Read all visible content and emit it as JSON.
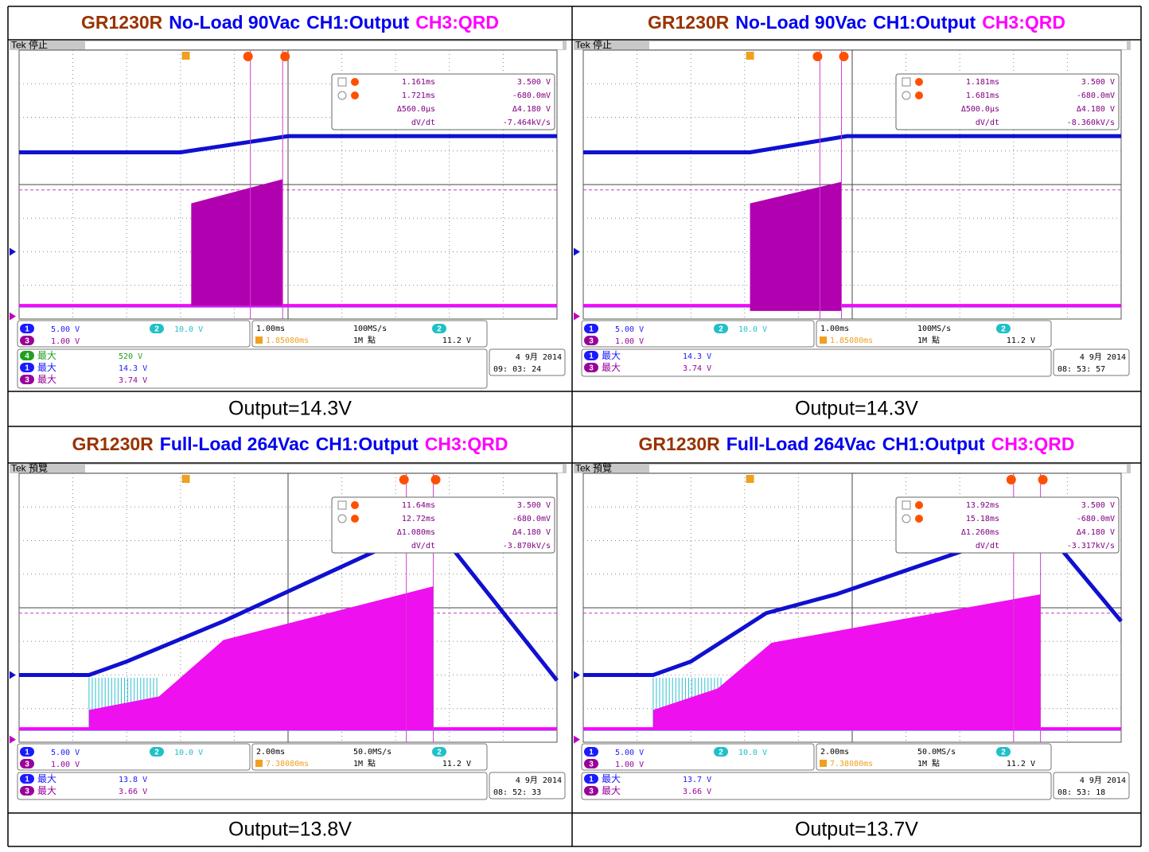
{
  "cells": [
    {
      "title": [
        "GR1230R",
        "No-Load 90Vac",
        "CH1:Output",
        "CH3:QRD"
      ],
      "scope": {
        "status": "Tek 停止",
        "cursors": {
          "a_time": "1.161ms",
          "a_volt": "3.500 V",
          "b_time": "1.721ms",
          "b_volt": "-680.0mV",
          "dt": "Δ560.0µs",
          "dv": "Δ4.180 V",
          "rate_label": "dV/dt",
          "rate": "-7.464kV/s"
        },
        "channels": [
          {
            "id": "1",
            "scale": "5.00 V"
          },
          {
            "id": "2",
            "scale": "10.0 V"
          },
          {
            "id": "3",
            "scale": "1.00 V"
          }
        ],
        "timebase": {
          "scale": "1.00ms",
          "rate": "100MS/s",
          "trigger_pos": "1.85080ms",
          "length": "1M 點",
          "trigger_channel": "2",
          "trigger_level": "11.2 V"
        },
        "measurements": [
          {
            "channel": "4",
            "label": "最大",
            "value": "520 V"
          },
          {
            "channel": "1",
            "label": "最大",
            "value": "14.3 V"
          },
          {
            "channel": "3",
            "label": "最大",
            "value": "3.74 V"
          }
        ],
        "date": "4 9月  2014",
        "time": "09: 03: 24"
      },
      "caption": "Output=14.3V"
    },
    {
      "title": [
        "GR1230R",
        "No-Load 90Vac",
        "CH1:Output",
        "CH3:QRD"
      ],
      "scope": {
        "status": "Tek 停止",
        "cursors": {
          "a_time": "1.181ms",
          "a_volt": "3.500 V",
          "b_time": "1.681ms",
          "b_volt": "-680.0mV",
          "dt": "Δ500.0µs",
          "dv": "Δ4.180 V",
          "rate_label": "dV/dt",
          "rate": "-8.360kV/s"
        },
        "channels": [
          {
            "id": "1",
            "scale": "5.00 V"
          },
          {
            "id": "2",
            "scale": "10.0 V"
          },
          {
            "id": "3",
            "scale": "1.00 V"
          }
        ],
        "timebase": {
          "scale": "1.00ms",
          "rate": "100MS/s",
          "trigger_pos": "1.85080ms",
          "length": "1M 點",
          "trigger_channel": "2",
          "trigger_level": "11.2 V"
        },
        "measurements": [
          {
            "channel": "1",
            "label": "最大",
            "value": "14.3 V"
          },
          {
            "channel": "3",
            "label": "最大",
            "value": "3.74 V"
          }
        ],
        "date": "4 9月  2014",
        "time": "08: 53: 57"
      },
      "caption": "Output=14.3V"
    },
    {
      "title": [
        "GR1230R",
        "Full-Load 264Vac",
        "CH1:Output",
        "CH3:QRD"
      ],
      "scope": {
        "status": "Tek 預覽",
        "cursors": {
          "a_time": "11.64ms",
          "a_volt": "3.500 V",
          "b_time": "12.72ms",
          "b_volt": "-680.0mV",
          "dt": "Δ1.080ms",
          "dv": "Δ4.180 V",
          "rate_label": "dV/dt",
          "rate": "-3.870kV/s"
        },
        "channels": [
          {
            "id": "1",
            "scale": "5.00 V"
          },
          {
            "id": "2",
            "scale": "10.0 V"
          },
          {
            "id": "3",
            "scale": "1.00 V"
          }
        ],
        "timebase": {
          "scale": "2.00ms",
          "rate": "50.0MS/s",
          "trigger_pos": "7.38080ms",
          "length": "1M 點",
          "trigger_channel": "2",
          "trigger_level": "11.2 V"
        },
        "measurements": [
          {
            "channel": "1",
            "label": "最大",
            "value": "13.8 V"
          },
          {
            "channel": "3",
            "label": "最大",
            "value": "3.66 V"
          }
        ],
        "date": "4 9月  2014",
        "time": "08: 52: 33"
      },
      "caption": "Output=13.8V"
    },
    {
      "title": [
        "GR1230R",
        "Full-Load 264Vac",
        "CH1:Output",
        "CH3:QRD"
      ],
      "scope": {
        "status": "Tek 預覽",
        "cursors": {
          "a_time": "13.92ms",
          "a_volt": "3.500 V",
          "b_time": "15.18ms",
          "b_volt": "-680.0mV",
          "dt": "Δ1.260ms",
          "dv": "Δ4.180 V",
          "rate_label": "dV/dt",
          "rate": "-3.317kV/s"
        },
        "channels": [
          {
            "id": "1",
            "scale": "5.00 V"
          },
          {
            "id": "2",
            "scale": "10.0 V"
          },
          {
            "id": "3",
            "scale": "1.00 V"
          }
        ],
        "timebase": {
          "scale": "2.00ms",
          "rate": "50.0MS/s",
          "trigger_pos": "7.38080ms",
          "length": "1M 點",
          "trigger_channel": "2",
          "trigger_level": "11.2 V"
        },
        "measurements": [
          {
            "channel": "1",
            "label": "最大",
            "value": "13.7 V"
          },
          {
            "channel": "3",
            "label": "最大",
            "value": "3.66 V"
          }
        ],
        "date": "4 9月  2014",
        "time": "08: 53: 18"
      },
      "caption": "Output=13.7V"
    }
  ]
}
